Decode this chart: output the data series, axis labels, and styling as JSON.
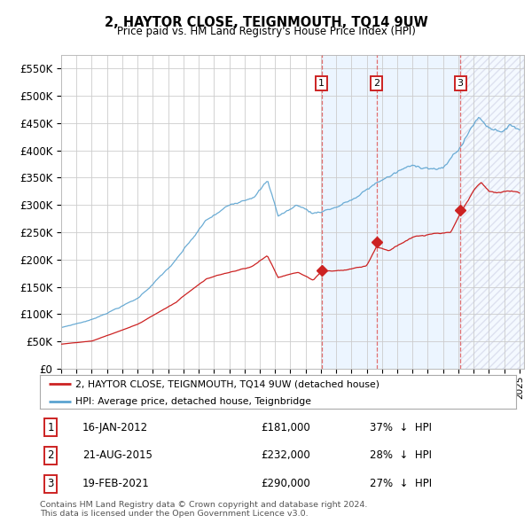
{
  "title": "2, HAYTOR CLOSE, TEIGNMOUTH, TQ14 9UW",
  "subtitle": "Price paid vs. HM Land Registry's House Price Index (HPI)",
  "ylim": [
    0,
    575000
  ],
  "yticks": [
    0,
    50000,
    100000,
    150000,
    200000,
    250000,
    300000,
    350000,
    400000,
    450000,
    500000,
    550000
  ],
  "ytick_labels": [
    "£0",
    "£50K",
    "£100K",
    "£150K",
    "£200K",
    "£250K",
    "£300K",
    "£350K",
    "£400K",
    "£450K",
    "£500K",
    "£550K"
  ],
  "hpi_color": "#5ba3d0",
  "price_color": "#cc2222",
  "vline_color": "#e06060",
  "shade_color": "#ddeeff",
  "sales": [
    {
      "num": 1,
      "date": "16-JAN-2012",
      "date_x": 2012.04,
      "price": 181000,
      "pct": "37%",
      "direction": "↓"
    },
    {
      "num": 2,
      "date": "21-AUG-2015",
      "date_x": 2015.64,
      "price": 232000,
      "pct": "28%",
      "direction": "↓"
    },
    {
      "num": 3,
      "date": "19-FEB-2021",
      "date_x": 2021.13,
      "price": 290000,
      "pct": "27%",
      "direction": "↓"
    }
  ],
  "legend_label_red": "2, HAYTOR CLOSE, TEIGNMOUTH, TQ14 9UW (detached house)",
  "legend_label_blue": "HPI: Average price, detached house, Teignbridge",
  "footer": "Contains HM Land Registry data © Crown copyright and database right 2024.\nThis data is licensed under the Open Government Licence v3.0.",
  "xlim_left": 1995.0,
  "xlim_right": 2025.3
}
